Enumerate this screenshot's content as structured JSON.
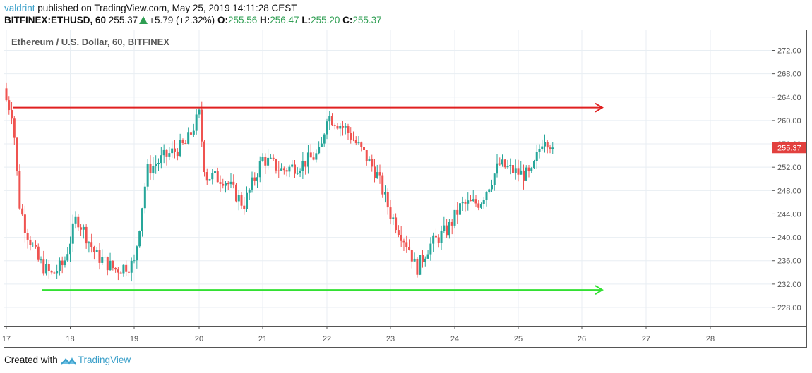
{
  "header": {
    "author": "valdrint",
    "published_text": " published on TradingView.com, May 25, 2019 14:11:28 CEST",
    "symbol": "BITFINEX:ETHUSD, 60",
    "last": "255.37",
    "change": "+5.79 (+2.32%)",
    "o_label": "O:",
    "o": "255.56",
    "h_label": "H:",
    "h": "256.47",
    "l_label": "L:",
    "l": "255.20",
    "c_label": "C:",
    "c": "255.37"
  },
  "legend": "Ethereum / U.S. Dollar, 60, BITFINEX",
  "footer": {
    "created_with": "Created with",
    "brand": "TradingView"
  },
  "colors": {
    "up": "#26a69a",
    "down": "#ef5350",
    "resistance": "#e02020",
    "support": "#33e033",
    "price_label_bg": "#e2403e",
    "grid": "#e8eef3"
  },
  "chart_data": {
    "type": "candlestick",
    "title": "Ethereum / U.S. Dollar, 60, BITFINEX",
    "xlabel": "",
    "ylabel": "",
    "x_ticks": [
      "17",
      "18",
      "19",
      "20",
      "21",
      "22",
      "23",
      "24",
      "25",
      "26",
      "27",
      "28"
    ],
    "y_ticks": [
      "272.00",
      "268.00",
      "264.00",
      "260.00",
      "256.00",
      "252.00",
      "248.00",
      "244.00",
      "240.00",
      "236.00",
      "232.00",
      "228.00"
    ],
    "ylim": [
      224.5,
      274.5
    ],
    "grid": true,
    "current_price": "255.37",
    "annotations": [
      {
        "type": "horizontal-ray",
        "label": "resistance",
        "price": 262.2,
        "from": "May 17",
        "to": "May 26",
        "color": "#e02020"
      },
      {
        "type": "horizontal-ray",
        "label": "support",
        "price": 231.0,
        "from": "May 17.5",
        "to": "May 26",
        "color": "#33e033"
      }
    ],
    "approx_path": {
      "x_days": [
        17.0,
        17.1,
        17.2,
        17.3,
        17.5,
        17.7,
        17.9,
        18.1,
        18.4,
        18.7,
        19.0,
        19.2,
        19.5,
        19.8,
        20.0,
        20.1,
        20.4,
        20.7,
        21.0,
        21.3,
        21.6,
        21.9,
        22.0,
        22.3,
        22.6,
        22.8,
        23.0,
        23.3,
        23.4,
        23.6,
        23.9,
        24.1,
        24.4,
        24.7,
        25.0,
        25.2,
        25.4,
        25.55
      ],
      "close": [
        263.5,
        261.0,
        246.0,
        241.5,
        236.0,
        233.5,
        235.5,
        243.5,
        237.0,
        234.5,
        235.5,
        251.5,
        254.0,
        256.0,
        261.0,
        250.5,
        250.0,
        245.5,
        253.5,
        251.5,
        252.5,
        254.5,
        261.0,
        258.5,
        254.0,
        250.5,
        244.0,
        238.0,
        234.5,
        238.5,
        241.5,
        245.5,
        246.0,
        252.5,
        251.0,
        250.5,
        257.5,
        255.37
      ]
    }
  }
}
